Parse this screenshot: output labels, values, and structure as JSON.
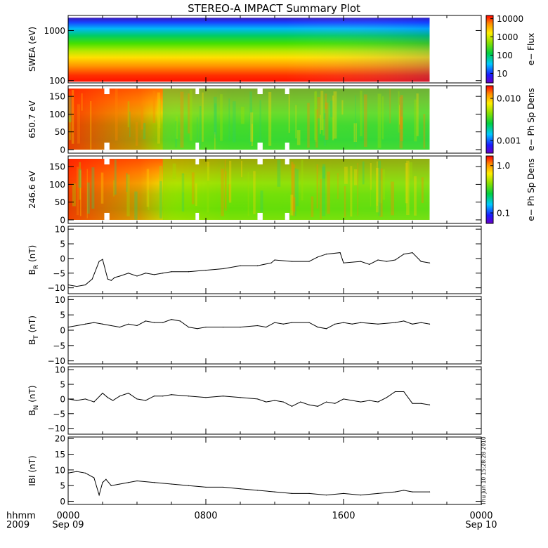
{
  "title": "STEREO-A IMPACT Summary Plot",
  "timestamp_label": "Thu Jun 10 15:28:28 2010",
  "x_axis": {
    "row1_label": "hhmm",
    "row2_label": "2009",
    "range_hours": [
      0,
      24
    ],
    "ticks": [
      {
        "hour": 0,
        "time": "0000",
        "date": "Sep 09"
      },
      {
        "hour": 8,
        "time": "0800",
        "date": ""
      },
      {
        "hour": 16,
        "time": "1600",
        "date": ""
      },
      {
        "hour": 24,
        "time": "0000",
        "date": "Sep 10"
      }
    ],
    "data_end_hour": 21
  },
  "colors": {
    "line": "#000000",
    "missing_data": "#ffffff"
  },
  "chart_data": [
    {
      "type": "heatmap",
      "id": "swea",
      "ylabel": "SWEA (eV)",
      "y_scale": "log",
      "ylim": [
        90,
        2000
      ],
      "y_ticks": [
        100,
        1000
      ],
      "y_tick_labels": [
        "100",
        "1000"
      ],
      "colorbar": {
        "label": "e− Flux",
        "scale": "log",
        "range": [
          3,
          15000
        ],
        "ticks": [
          10,
          100,
          1000,
          10000
        ],
        "tick_labels": [
          "10",
          "100",
          "1000",
          "10000"
        ]
      }
    },
    {
      "type": "heatmap",
      "id": "pad_650",
      "ylabel": "650.7 eV",
      "y_scale": "linear",
      "ylim": [
        -10,
        180
      ],
      "y_ticks": [
        0,
        50,
        100,
        150
      ],
      "y_tick_labels": [
        "0",
        "50",
        "100",
        "150"
      ],
      "colorbar": {
        "label": "e− Ph Sp Dens",
        "scale": "log",
        "range": [
          0.0005,
          0.02
        ],
        "ticks": [
          0.001,
          0.01
        ],
        "tick_labels": [
          "0.001",
          "0.010"
        ]
      }
    },
    {
      "type": "heatmap",
      "id": "pad_246",
      "ylabel": "246.6 eV",
      "y_scale": "linear",
      "ylim": [
        -10,
        180
      ],
      "y_ticks": [
        0,
        50,
        100,
        150
      ],
      "y_tick_labels": [
        "0",
        "50",
        "100",
        "150"
      ],
      "colorbar": {
        "label": "e− Ph Sp Dens",
        "scale": "log",
        "range": [
          0.06,
          1.6
        ],
        "ticks": [
          0.1,
          1.0
        ],
        "tick_labels": [
          "0.1",
          "1.0"
        ]
      }
    },
    {
      "type": "line",
      "id": "br",
      "ylabel_main": "B",
      "ylabel_sub": "R",
      "ylabel_unit": " (nT)",
      "ylim": [
        -12,
        11
      ],
      "y_ticks": [
        -10,
        -5,
        0,
        5,
        10
      ],
      "y_tick_labels": [
        "−10",
        "−5",
        "0",
        "5",
        "10"
      ],
      "x": [
        0,
        0.5,
        1.0,
        1.4,
        1.8,
        2.0,
        2.3,
        2.5,
        2.7,
        3.0,
        3.5,
        4.0,
        4.5,
        5.0,
        5.5,
        6.0,
        7.0,
        8.0,
        9.0,
        10.0,
        11.0,
        11.8,
        12.0,
        13.0,
        14.0,
        14.5,
        15.0,
        15.8,
        16.0,
        17.0,
        17.5,
        18.0,
        18.5,
        19.0,
        19.5,
        20.0,
        20.5,
        21.0
      ],
      "y": [
        -9.0,
        -9.5,
        -9.0,
        -7.0,
        -1.0,
        -0.3,
        -7.0,
        -7.5,
        -6.5,
        -6.0,
        -5.0,
        -6.0,
        -5.0,
        -5.5,
        -5.0,
        -4.5,
        -4.5,
        -4.0,
        -3.5,
        -2.5,
        -2.5,
        -1.5,
        -0.5,
        -1.0,
        -1.0,
        0.5,
        1.5,
        2.0,
        -1.5,
        -1.0,
        -2.0,
        -0.5,
        -1.0,
        -0.5,
        1.5,
        2.0,
        -1.0,
        -1.5
      ]
    },
    {
      "type": "line",
      "id": "bt",
      "ylabel_main": "B",
      "ylabel_sub": "T",
      "ylabel_unit": " (nT)",
      "ylim": [
        -11,
        11
      ],
      "y_ticks": [
        -10,
        -5,
        0,
        5,
        10
      ],
      "y_tick_labels": [
        "−10",
        "−5",
        "0",
        "5",
        "10"
      ],
      "x": [
        0,
        0.5,
        1.0,
        1.5,
        2.0,
        2.5,
        3.0,
        3.5,
        4.0,
        4.5,
        5.0,
        5.5,
        6.0,
        6.5,
        7.0,
        7.5,
        8.0,
        9.0,
        10.0,
        11.0,
        11.5,
        12.0,
        12.5,
        13.0,
        14.0,
        14.5,
        15.0,
        15.5,
        16.0,
        16.5,
        17.0,
        18.0,
        19.0,
        19.5,
        20.0,
        20.5,
        21.0
      ],
      "y": [
        1.0,
        1.5,
        2.0,
        2.5,
        2.0,
        1.5,
        1.0,
        2.0,
        1.5,
        3.0,
        2.5,
        2.5,
        3.5,
        3.0,
        1.0,
        0.5,
        1.0,
        1.0,
        1.0,
        1.5,
        1.0,
        2.5,
        2.0,
        2.5,
        2.5,
        1.0,
        0.5,
        2.0,
        2.5,
        2.0,
        2.5,
        2.0,
        2.5,
        3.0,
        2.0,
        2.5,
        2.0
      ]
    },
    {
      "type": "line",
      "id": "bn",
      "ylabel_main": "B",
      "ylabel_sub": "N",
      "ylabel_unit": " (nT)",
      "ylim": [
        -12,
        11
      ],
      "y_ticks": [
        -10,
        -5,
        0,
        5,
        10
      ],
      "y_tick_labels": [
        "−10",
        "−5",
        "0",
        "5",
        "10"
      ],
      "x": [
        0,
        0.5,
        1.0,
        1.5,
        2.0,
        2.3,
        2.6,
        3.0,
        3.5,
        4.0,
        4.5,
        5.0,
        5.5,
        6.0,
        7.0,
        8.0,
        9.0,
        10.0,
        11.0,
        11.5,
        12.0,
        12.5,
        13.0,
        13.5,
        14.0,
        14.5,
        15.0,
        15.5,
        16.0,
        17.0,
        17.5,
        18.0,
        18.5,
        19.0,
        19.5,
        20.0,
        20.5,
        21.0
      ],
      "y": [
        0.0,
        -0.5,
        0.0,
        -1.0,
        2.0,
        0.5,
        -0.5,
        1.0,
        2.0,
        0.0,
        -0.5,
        1.0,
        1.0,
        1.5,
        1.0,
        0.5,
        1.0,
        0.5,
        0.0,
        -1.0,
        -0.5,
        -1.0,
        -2.5,
        -1.0,
        -2.0,
        -2.5,
        -1.0,
        -1.5,
        0.0,
        -1.0,
        -0.5,
        -1.0,
        0.5,
        2.5,
        2.5,
        -1.5,
        -1.5,
        -2.0
      ]
    },
    {
      "type": "line",
      "id": "bmag",
      "ylabel_main": "IBI (nT)",
      "ylim": [
        -1,
        20.5
      ],
      "y_ticks": [
        0,
        5,
        10,
        15,
        20
      ],
      "y_tick_labels": [
        "0",
        "5",
        "10",
        "15",
        "20"
      ],
      "x": [
        0,
        0.5,
        1.0,
        1.5,
        1.8,
        2.0,
        2.2,
        2.5,
        3.0,
        3.5,
        4.0,
        5.0,
        6.0,
        7.0,
        8.0,
        9.0,
        10.0,
        11.0,
        12.0,
        13.0,
        14.0,
        15.0,
        16.0,
        17.0,
        18.0,
        19.0,
        19.5,
        20.0,
        21.0
      ],
      "y": [
        9.0,
        9.5,
        9.0,
        7.5,
        2.0,
        6.0,
        7.0,
        5.0,
        5.5,
        6.0,
        6.5,
        6.0,
        5.5,
        5.0,
        4.5,
        4.5,
        4.0,
        3.5,
        3.0,
        2.5,
        2.5,
        2.0,
        2.5,
        2.0,
        2.5,
        3.0,
        3.5,
        3.0,
        3.0
      ]
    }
  ]
}
